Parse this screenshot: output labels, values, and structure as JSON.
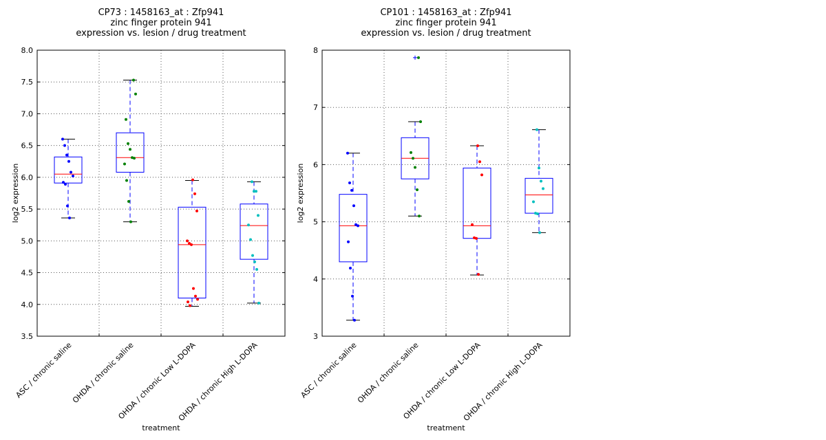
{
  "chart_data": [
    {
      "type": "box",
      "title": [
        "CP73 : 1458163_at : Zfp941",
        "zinc finger protein 941",
        "expression vs. lesion / drug treatment"
      ],
      "xlabel": "treatment",
      "ylabel": "log2 expression",
      "ylim": [
        3.5,
        8.0
      ],
      "yticks": [
        "3.5",
        "4.0",
        "4.5",
        "5.0",
        "5.5",
        "6.0",
        "6.5",
        "7.0",
        "7.5",
        "8.0"
      ],
      "grid": true,
      "categories": [
        "ASC / chronic saline",
        "OHDA / chronic saline",
        "OHDA / chronic Low L-DOPA",
        "OHDA / chronic High L-DOPA"
      ],
      "groups": [
        {
          "color": "#0000ff",
          "points": [
            6.6,
            6.5,
            6.35,
            6.25,
            6.08,
            6.02,
            5.92,
            5.89,
            5.55,
            5.36
          ],
          "q1": 5.91,
          "median": 6.05,
          "q3": 6.32,
          "whisker_low": 5.36,
          "whisker_high": 6.6,
          "outliers": []
        },
        {
          "color": "#008000",
          "points": [
            7.53,
            7.31,
            6.91,
            6.53,
            6.44,
            6.31,
            6.3,
            6.21,
            5.95,
            5.62,
            5.3
          ],
          "q1": 6.08,
          "median": 6.31,
          "q3": 6.7,
          "whisker_low": 5.3,
          "whisker_high": 7.53,
          "outliers": []
        },
        {
          "color": "#ff0000",
          "points": [
            5.96,
            5.74,
            5.47,
            5.0,
            4.96,
            4.94,
            4.25,
            4.13,
            4.08,
            4.04,
            3.98
          ],
          "q1": 4.1,
          "median": 4.94,
          "q3": 5.53,
          "whisker_low": 3.97,
          "whisker_high": 5.95,
          "outliers": []
        },
        {
          "color": "#00bfbf",
          "points": [
            5.93,
            5.78,
            5.78,
            5.4,
            5.25,
            5.02,
            4.77,
            4.67,
            4.55,
            4.02
          ],
          "q1": 4.71,
          "median": 5.24,
          "q3": 5.58,
          "whisker_low": 4.02,
          "whisker_high": 5.93,
          "outliers": []
        }
      ]
    },
    {
      "type": "box",
      "title": [
        "CP101 : 1458163_at : Zfp941",
        "zinc finger protein 941",
        "expression vs. lesion / drug treatment"
      ],
      "xlabel": "treatment",
      "ylabel": "log2 expression",
      "ylim": [
        3,
        8
      ],
      "yticks": [
        "3",
        "4",
        "5",
        "6",
        "7",
        "8"
      ],
      "grid": true,
      "categories": [
        "ASC / chronic saline",
        "OHDA / chronic saline",
        "OHDA / chronic Low L-DOPA",
        "OHDA / chronic High L-DOPA"
      ],
      "groups": [
        {
          "color": "#0000ff",
          "points": [
            6.2,
            5.68,
            5.55,
            5.28,
            4.95,
            4.93,
            4.65,
            4.19,
            3.7,
            3.28
          ],
          "q1": 4.3,
          "median": 4.93,
          "q3": 5.48,
          "whisker_low": 3.28,
          "whisker_high": 6.2,
          "outliers": []
        },
        {
          "color": "#008000",
          "points": [
            7.87,
            6.75,
            6.21,
            6.11,
            5.95,
            5.56,
            5.1
          ],
          "q1": 5.75,
          "median": 6.11,
          "q3": 6.47,
          "whisker_low": 5.1,
          "whisker_high": 6.75,
          "outliers": [
            7.87
          ]
        },
        {
          "color": "#ff0000",
          "points": [
            6.33,
            6.05,
            5.82,
            4.95,
            4.72,
            4.71,
            4.08
          ],
          "q1": 4.71,
          "median": 4.93,
          "q3": 5.94,
          "whisker_low": 4.07,
          "whisker_high": 6.33,
          "outliers": []
        },
        {
          "color": "#00bfbf",
          "points": [
            6.61,
            5.94,
            5.71,
            5.58,
            5.35,
            5.15,
            5.14,
            4.81
          ],
          "q1": 5.15,
          "median": 5.47,
          "q3": 5.76,
          "whisker_low": 4.81,
          "whisker_high": 6.61,
          "outliers": []
        }
      ]
    }
  ]
}
